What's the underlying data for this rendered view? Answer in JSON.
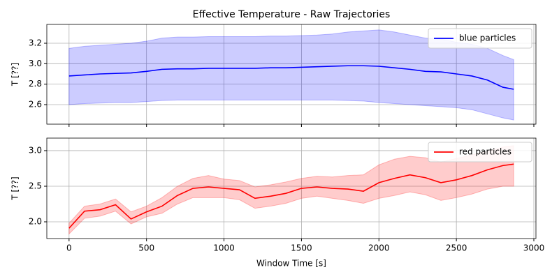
{
  "chart_data": [
    {
      "type": "line",
      "title": "Effective Temperature - Raw Trajectories",
      "y_label": "T [??]",
      "x": [
        0,
        100,
        200,
        300,
        400,
        500,
        600,
        700,
        800,
        900,
        1000,
        1100,
        1200,
        1300,
        1400,
        1500,
        1600,
        1700,
        1800,
        1900,
        2000,
        2100,
        2200,
        2300,
        2400,
        2500,
        2600,
        2700,
        2800,
        2870
      ],
      "series": [
        {
          "name": "blue particles",
          "color": "#0000ff",
          "band_color": "#0000ff",
          "values": [
            2.88,
            2.89,
            2.9,
            2.905,
            2.91,
            2.925,
            2.945,
            2.95,
            2.95,
            2.955,
            2.955,
            2.955,
            2.955,
            2.96,
            2.96,
            2.965,
            2.97,
            2.975,
            2.98,
            2.98,
            2.975,
            2.96,
            2.945,
            2.925,
            2.92,
            2.9,
            2.88,
            2.84,
            2.77,
            2.75
          ],
          "upper": [
            3.15,
            3.17,
            3.18,
            3.19,
            3.2,
            3.22,
            3.25,
            3.26,
            3.26,
            3.265,
            3.265,
            3.265,
            3.265,
            3.27,
            3.27,
            3.275,
            3.28,
            3.29,
            3.31,
            3.32,
            3.33,
            3.31,
            3.28,
            3.25,
            3.24,
            3.21,
            3.19,
            3.15,
            3.08,
            3.04
          ],
          "lower": [
            2.6,
            2.61,
            2.615,
            2.62,
            2.62,
            2.63,
            2.64,
            2.645,
            2.645,
            2.645,
            2.645,
            2.645,
            2.645,
            2.645,
            2.645,
            2.645,
            2.645,
            2.645,
            2.64,
            2.635,
            2.62,
            2.61,
            2.6,
            2.59,
            2.58,
            2.57,
            2.55,
            2.51,
            2.47,
            2.45
          ]
        }
      ],
      "xlim": [
        -143.5,
        3013.5
      ],
      "xticks": [
        0,
        500,
        1000,
        1500,
        2000,
        2500,
        3000
      ],
      "xtick_labels": false,
      "ylim": [
        2.409,
        3.384
      ],
      "yticks": [
        2.6,
        2.8,
        {
          "value": 3,
          "label": "3.0"
        },
        3.2
      ],
      "grid": true,
      "legend": "upper right"
    },
    {
      "type": "line",
      "y_label": "T [??]",
      "x_label": "Window Time [s]",
      "x": [
        0,
        100,
        200,
        300,
        400,
        500,
        600,
        700,
        800,
        900,
        1000,
        1100,
        1200,
        1300,
        1400,
        1500,
        1600,
        1700,
        1800,
        1900,
        2000,
        2100,
        2200,
        2300,
        2400,
        2500,
        2600,
        2700,
        2800,
        2870
      ],
      "series": [
        {
          "name": "red particles",
          "color": "#ff0000",
          "band_color": "#ff0000",
          "values": [
            1.91,
            2.15,
            2.17,
            2.24,
            2.04,
            2.14,
            2.22,
            2.37,
            2.47,
            2.49,
            2.47,
            2.45,
            2.33,
            2.36,
            2.4,
            2.47,
            2.49,
            2.47,
            2.46,
            2.43,
            2.55,
            2.61,
            2.66,
            2.62,
            2.55,
            2.59,
            2.65,
            2.73,
            2.79,
            2.81
          ],
          "upper": [
            1.98,
            2.22,
            2.25,
            2.32,
            2.14,
            2.22,
            2.34,
            2.5,
            2.61,
            2.65,
            2.6,
            2.58,
            2.49,
            2.52,
            2.56,
            2.61,
            2.64,
            2.63,
            2.65,
            2.66,
            2.8,
            2.88,
            2.92,
            2.9,
            2.84,
            2.89,
            2.94,
            2.99,
            3.05,
            3.07
          ],
          "lower": [
            1.83,
            2.05,
            2.08,
            2.15,
            1.97,
            2.07,
            2.12,
            2.25,
            2.34,
            2.34,
            2.34,
            2.31,
            2.19,
            2.22,
            2.26,
            2.33,
            2.36,
            2.33,
            2.3,
            2.26,
            2.33,
            2.37,
            2.42,
            2.38,
            2.3,
            2.34,
            2.39,
            2.46,
            2.5,
            2.5
          ]
        }
      ],
      "xlim": [
        -143.5,
        3013.5
      ],
      "xticks": [
        0,
        500,
        1000,
        1500,
        2000,
        2500,
        3000
      ],
      "xtick_labels": true,
      "ylim": [
        1.765,
        3.176
      ],
      "yticks": [
        {
          "value": 2,
          "label": "2.0"
        },
        2.5,
        {
          "value": 3,
          "label": "3.0"
        }
      ],
      "grid": true,
      "legend": "upper right"
    }
  ]
}
